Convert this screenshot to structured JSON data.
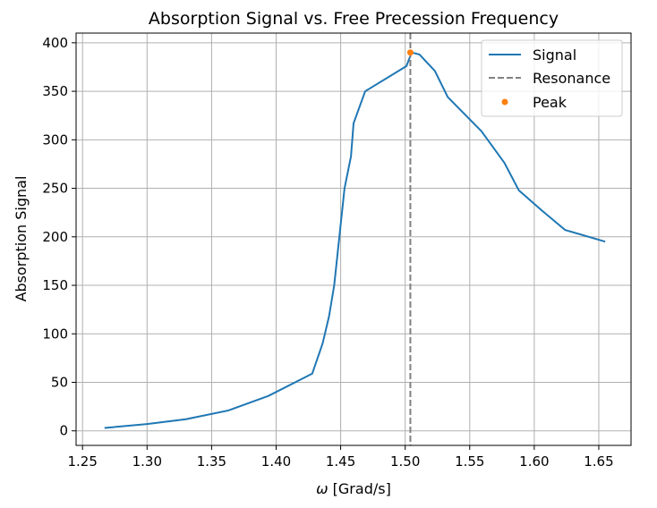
{
  "chart_data": {
    "type": "line",
    "title": "Absorption Signal vs. Free Precession Frequency",
    "xlabel": "ω [Grad/s]",
    "xlabel_prefix": "ω",
    "xlabel_suffix": " [Grad/s]",
    "ylabel": "Absorption Signal",
    "xlim": [
      1.245,
      1.675
    ],
    "ylim": [
      -15,
      410
    ],
    "grid": true,
    "legend_position": "upper right",
    "xticks": [
      {
        "value": 1.25,
        "label": "1.25"
      },
      {
        "value": 1.3,
        "label": "1.30"
      },
      {
        "value": 1.35,
        "label": "1.35"
      },
      {
        "value": 1.4,
        "label": "1.40"
      },
      {
        "value": 1.45,
        "label": "1.45"
      },
      {
        "value": 1.5,
        "label": "1.50"
      },
      {
        "value": 1.55,
        "label": "1.55"
      },
      {
        "value": 1.6,
        "label": "1.60"
      },
      {
        "value": 1.65,
        "label": "1.65"
      }
    ],
    "yticks": [
      {
        "value": 0,
        "label": "0"
      },
      {
        "value": 50,
        "label": "50"
      },
      {
        "value": 100,
        "label": "100"
      },
      {
        "value": 150,
        "label": "150"
      },
      {
        "value": 200,
        "label": "200"
      },
      {
        "value": 250,
        "label": "250"
      },
      {
        "value": 300,
        "label": "300"
      },
      {
        "value": 350,
        "label": "350"
      },
      {
        "value": 400,
        "label": "400"
      }
    ],
    "series": [
      {
        "name": "Signal",
        "color": "#1f77b4",
        "points": [
          {
            "x": 1.267,
            "y": 3
          },
          {
            "x": 1.3,
            "y": 7
          },
          {
            "x": 1.33,
            "y": 12
          },
          {
            "x": 1.363,
            "y": 21
          },
          {
            "x": 1.394,
            "y": 36
          },
          {
            "x": 1.428,
            "y": 59
          },
          {
            "x": 1.436,
            "y": 90
          },
          {
            "x": 1.441,
            "y": 118
          },
          {
            "x": 1.445,
            "y": 150
          },
          {
            "x": 1.449,
            "y": 200
          },
          {
            "x": 1.453,
            "y": 250
          },
          {
            "x": 1.458,
            "y": 283
          },
          {
            "x": 1.46,
            "y": 317
          },
          {
            "x": 1.469,
            "y": 350
          },
          {
            "x": 1.501,
            "y": 376
          },
          {
            "x": 1.505,
            "y": 390
          },
          {
            "x": 1.511,
            "y": 388
          },
          {
            "x": 1.523,
            "y": 371
          },
          {
            "x": 1.533,
            "y": 344
          },
          {
            "x": 1.559,
            "y": 309
          },
          {
            "x": 1.577,
            "y": 276
          },
          {
            "x": 1.588,
            "y": 248
          },
          {
            "x": 1.606,
            "y": 227
          },
          {
            "x": 1.624,
            "y": 207
          },
          {
            "x": 1.655,
            "y": 195
          }
        ]
      }
    ],
    "resonance": {
      "name": "Resonance",
      "x": 1.504,
      "color": "#808080"
    },
    "peak": {
      "name": "Peak",
      "x": 1.504,
      "y": 390,
      "color": "#ff7f0e"
    }
  }
}
